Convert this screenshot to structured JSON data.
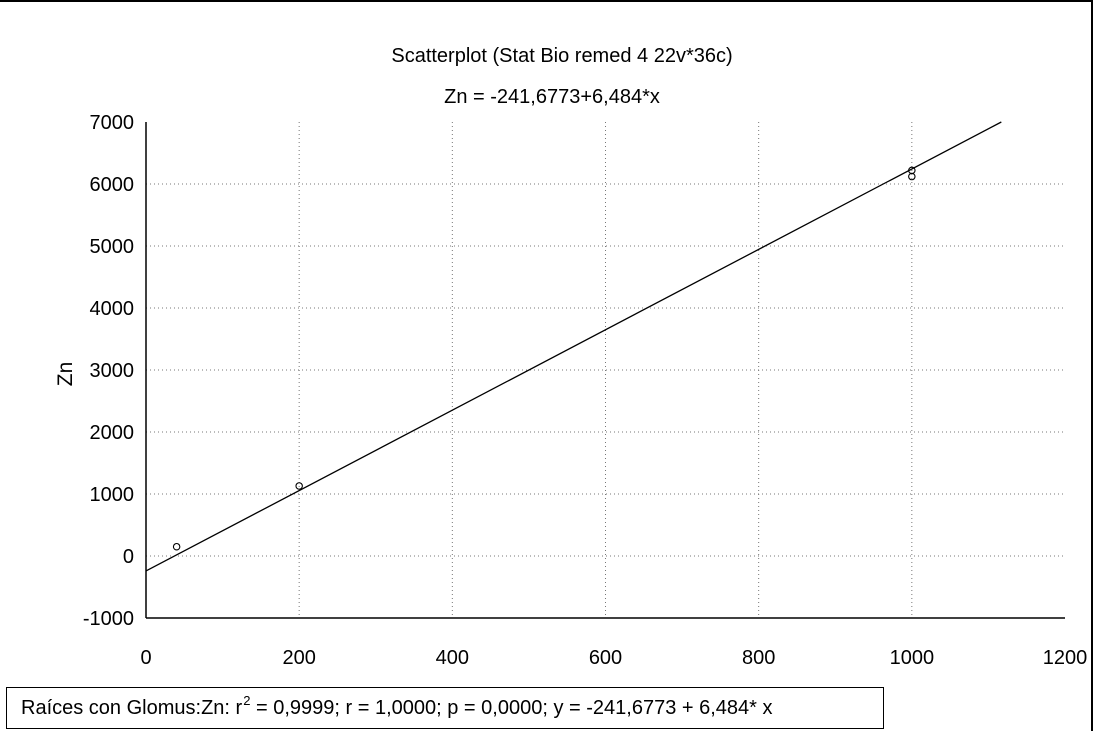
{
  "chart_data": {
    "type": "scatter",
    "title": "Scatterplot (Stat Bio remed 4 22v*36c)",
    "subtitle": "Zn = -241,6773+6,484*x",
    "xlabel": "",
    "ylabel": "Zn",
    "xlim": [
      0,
      1200
    ],
    "ylim": [
      -1000,
      7000
    ],
    "x_ticks": [
      "0",
      "200",
      "400",
      "600",
      "800",
      "1000",
      "1200"
    ],
    "y_ticks": [
      "-1000",
      "0",
      "1000",
      "2000",
      "3000",
      "4000",
      "5000",
      "6000",
      "7000"
    ],
    "grid": true,
    "points": [
      {
        "x": 40,
        "y": 150
      },
      {
        "x": 200,
        "y": 1130
      },
      {
        "x": 1000,
        "y": 6120
      },
      {
        "x": 1000,
        "y": 6220
      }
    ],
    "fit_line": {
      "intercept": -241.6773,
      "slope": 6.484
    },
    "legend": {
      "prefix": "Raíces con Glomus:Zn:  r",
      "sup": "2",
      "suffix": " = 0,9999;  r = 1,0000; p = 0,0000;  y = -241,6773 + 6,484* x"
    }
  }
}
